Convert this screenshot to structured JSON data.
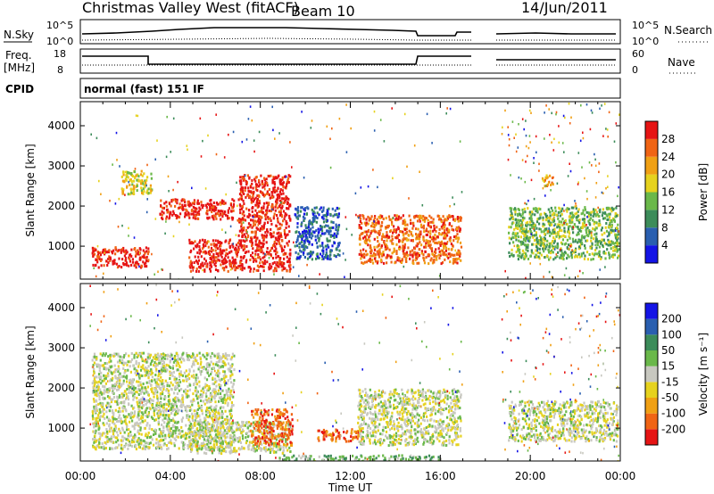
{
  "header": {
    "station": "Christmas Valley West (fitACF)",
    "beam": "Beam 10",
    "date": "14/Jun/2011"
  },
  "noise_panel": {
    "left_label": "N.Sky",
    "right_label": "N.Search",
    "tick_top": "10^5",
    "tick_bottom": "10^0"
  },
  "freq_panel": {
    "left_label_line1": "Freq.",
    "left_label_line2": "[MHz]",
    "right_label": "Nave",
    "left_ticks": [
      "18",
      "8"
    ],
    "right_ticks": [
      "60",
      "0"
    ]
  },
  "cpid_panel": {
    "label": "CPID",
    "mode": "normal (fast) 151 IF"
  },
  "colors": {
    "power": [
      "#1414e6",
      "#2a5fb0",
      "#3c8c5a",
      "#6ab84a",
      "#e6d21e",
      "#f0a014",
      "#f06414",
      "#e61414"
    ],
    "velocity": [
      "#e61414",
      "#f06414",
      "#f0a014",
      "#e6d21e",
      "#c8c8c0",
      "#6ab84a",
      "#3c8c5a",
      "#2a5fb0",
      "#1414e6"
    ]
  },
  "chart_data": [
    {
      "type": "heatmap",
      "name_ref": "power",
      "xlabel": "",
      "ylabel": "Slant Range [km]",
      "yticks": [
        "1000",
        "2000",
        "3000",
        "4000"
      ],
      "ylim": [
        180,
        4600
      ],
      "colorbar_label": "Power [dB]",
      "colorbar_ticks": [
        "4",
        "8",
        "12",
        "16",
        "20",
        "24",
        "28"
      ],
      "regions": [
        {
          "t0": 0.5,
          "t1": 3.0,
          "r0": 500,
          "r1": 1000,
          "level": 7
        },
        {
          "t0": 1.8,
          "t1": 3.2,
          "r0": 2300,
          "r1": 2900,
          "level": 4
        },
        {
          "t0": 3.5,
          "t1": 6.8,
          "r0": 1700,
          "r1": 2200,
          "level": 7
        },
        {
          "t0": 4.8,
          "t1": 9.3,
          "r0": 400,
          "r1": 1200,
          "level": 7
        },
        {
          "t0": 7.0,
          "t1": 9.3,
          "r0": 1200,
          "r1": 2800,
          "level": 7
        },
        {
          "t0": 9.5,
          "t1": 11.5,
          "r0": 700,
          "r1": 2000,
          "level": 1
        },
        {
          "t0": 12.3,
          "t1": 16.9,
          "r0": 600,
          "r1": 1800,
          "level": 6
        },
        {
          "t0": 19.0,
          "t1": 23.9,
          "r0": 700,
          "r1": 2000,
          "level": 3
        },
        {
          "t0": 20.5,
          "t1": 21.0,
          "r0": 2500,
          "r1": 2800,
          "level": 5
        }
      ]
    },
    {
      "type": "heatmap",
      "name_ref": "velocity",
      "xlabel": "Time UT",
      "ylabel": "Slant Range [km]",
      "yticks": [
        "1000",
        "2000",
        "3000",
        "4000"
      ],
      "ylim": [
        180,
        4600
      ],
      "xticks": [
        "00:00",
        "04:00",
        "08:00",
        "12:00",
        "16:00",
        "20:00",
        "00:00"
      ],
      "xlim": [
        0,
        24
      ],
      "colorbar_label": "Velocity [m s⁻¹]",
      "colorbar_ticks": [
        "-200",
        "-100",
        "-50",
        "-15",
        "15",
        "50",
        "100",
        "200"
      ],
      "regions": [
        {
          "t0": 0.5,
          "t1": 6.8,
          "r0": 500,
          "r1": 2900,
          "level": 4
        },
        {
          "t0": 4.8,
          "t1": 9.3,
          "r0": 400,
          "r1": 1200,
          "level": 4
        },
        {
          "t0": 7.5,
          "t1": 9.4,
          "r0": 600,
          "r1": 1500,
          "level": 1
        },
        {
          "t0": 10.5,
          "t1": 12.5,
          "r0": 700,
          "r1": 1000,
          "level": 1
        },
        {
          "t0": 12.3,
          "t1": 16.9,
          "r0": 600,
          "r1": 2000,
          "level": 4
        },
        {
          "t0": 8.8,
          "t1": 16.0,
          "r0": 200,
          "r1": 350,
          "level": 5
        },
        {
          "t0": 19.0,
          "t1": 23.9,
          "r0": 700,
          "r1": 1700,
          "level": 4
        }
      ]
    }
  ]
}
